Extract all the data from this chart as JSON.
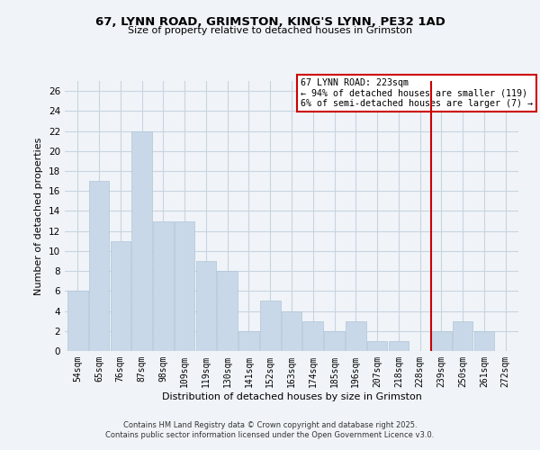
{
  "title": "67, LYNN ROAD, GRIMSTON, KING'S LYNN, PE32 1AD",
  "subtitle": "Size of property relative to detached houses in Grimston",
  "xlabel": "Distribution of detached houses by size in Grimston",
  "ylabel": "Number of detached properties",
  "bin_labels": [
    "54sqm",
    "65sqm",
    "76sqm",
    "87sqm",
    "98sqm",
    "109sqm",
    "119sqm",
    "130sqm",
    "141sqm",
    "152sqm",
    "163sqm",
    "174sqm",
    "185sqm",
    "196sqm",
    "207sqm",
    "218sqm",
    "228sqm",
    "239sqm",
    "250sqm",
    "261sqm",
    "272sqm"
  ],
  "bar_values": [
    6,
    17,
    11,
    22,
    13,
    13,
    9,
    8,
    2,
    5,
    4,
    3,
    2,
    3,
    1,
    1,
    0,
    2,
    3,
    2,
    0
  ],
  "bar_color": "#c8d8e8",
  "bar_edge_color": "#b0c4d8",
  "ylim": [
    0,
    27
  ],
  "yticks": [
    0,
    2,
    4,
    6,
    8,
    10,
    12,
    14,
    16,
    18,
    20,
    22,
    24,
    26
  ],
  "vline_x": 16.5,
  "vline_color": "#cc0000",
  "annotation_title": "67 LYNN ROAD: 223sqm",
  "annotation_line1": "← 94% of detached houses are smaller (119)",
  "annotation_line2": "6% of semi-detached houses are larger (7) →",
  "annotation_box_facecolor": "#ffffff",
  "annotation_box_edgecolor": "#cc0000",
  "footer1": "Contains HM Land Registry data © Crown copyright and database right 2025.",
  "footer2": "Contains public sector information licensed under the Open Government Licence v3.0.",
  "background_color": "#f0f4f8",
  "grid_color": "#c8d4e0"
}
